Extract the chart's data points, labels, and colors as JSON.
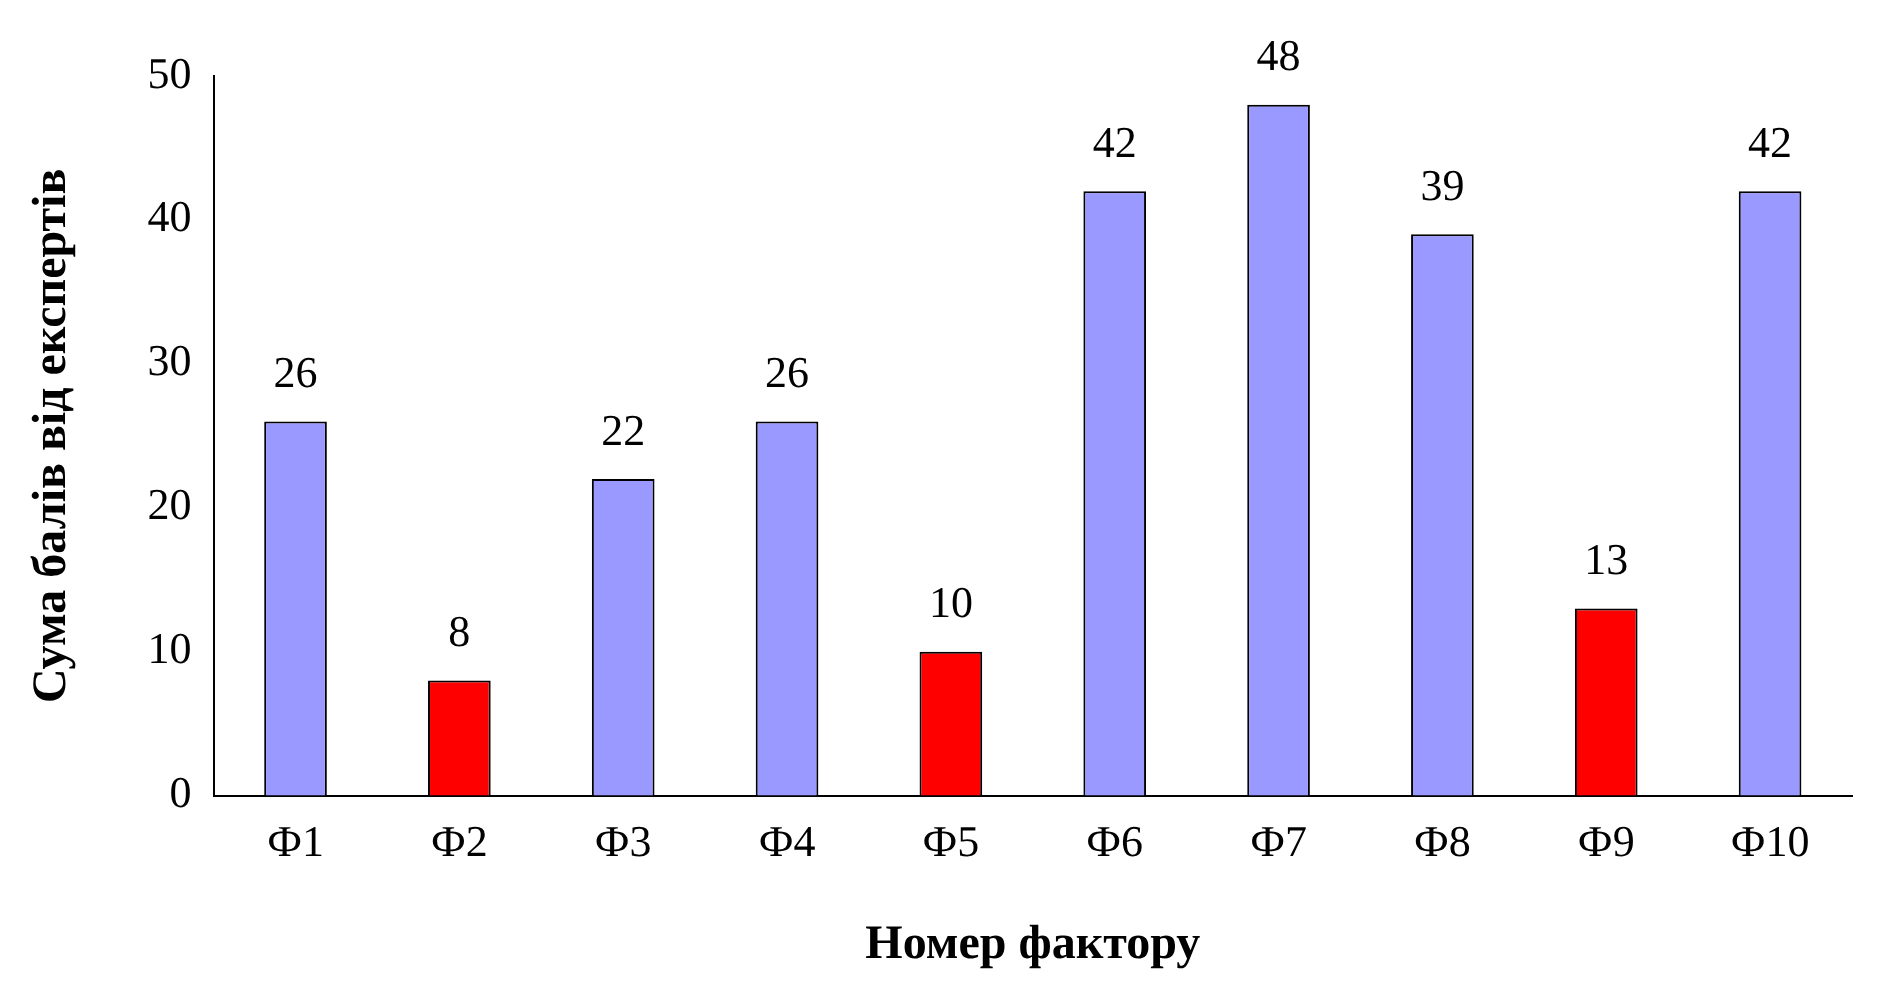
{
  "chart_data": {
    "type": "bar",
    "xlabel": "Номер фактору",
    "ylabel": "Сума балів від експертів",
    "categories": [
      "Ф1",
      "Ф2",
      "Ф3",
      "Ф4",
      "Ф5",
      "Ф6",
      "Ф7",
      "Ф8",
      "Ф9",
      "Ф10"
    ],
    "values": [
      26,
      8,
      22,
      26,
      10,
      42,
      48,
      39,
      13,
      42
    ],
    "colors": [
      "#9999ff",
      "#ff0000",
      "#9999ff",
      "#9999ff",
      "#ff0000",
      "#9999ff",
      "#9999ff",
      "#9999ff",
      "#ff0000",
      "#9999ff"
    ],
    "ylim": [
      0,
      50
    ],
    "yticks": [
      0,
      10,
      20,
      30,
      40,
      50
    ],
    "grid": false,
    "legend": false,
    "data_labels": true
  }
}
